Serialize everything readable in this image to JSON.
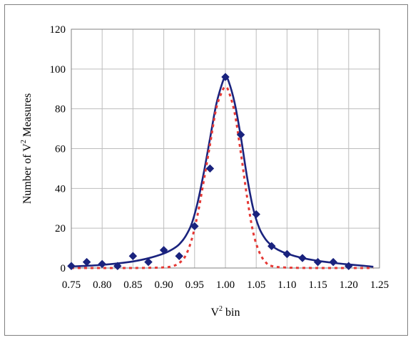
{
  "chart_data": {
    "type": "scatter",
    "title": "",
    "xlabel": "bin",
    "xlabel_prefix": "V",
    "xlabel_superscript": "2",
    "ylabel_prefix": "Number of V",
    "ylabel_superscript": "2",
    "ylabel_suffix": " Measures",
    "xlim": [
      0.75,
      1.25
    ],
    "ylim": [
      0,
      120
    ],
    "xticks": [
      "0.75",
      "0.80",
      "0.85",
      "0.90",
      "0.95",
      "1.00",
      "1.05",
      "1.10",
      "1.15",
      "1.20",
      "1.25"
    ],
    "yticks": [
      "0",
      "20",
      "40",
      "60",
      "80",
      "100",
      "120"
    ],
    "grid": true,
    "series": [
      {
        "kind": "markers",
        "marker": "diamond",
        "color": "#1a237e",
        "x": [
          0.75,
          0.775,
          0.8,
          0.825,
          0.85,
          0.875,
          0.9,
          0.925,
          0.95,
          0.975,
          1.0,
          1.025,
          1.05,
          1.075,
          1.1,
          1.125,
          1.15,
          1.175,
          1.2
        ],
        "y": [
          1,
          3,
          2,
          1,
          6,
          3,
          9,
          6,
          21,
          50,
          96,
          67,
          27,
          11,
          7,
          5,
          3,
          3,
          1
        ]
      },
      {
        "kind": "line",
        "style": "solid",
        "color": "#1a237e",
        "x": [
          0.75,
          0.775,
          0.8,
          0.825,
          0.85,
          0.875,
          0.9,
          0.915,
          0.925,
          0.935,
          0.945,
          0.955,
          0.965,
          0.975,
          0.985,
          0.995,
          1.0,
          1.005,
          1.015,
          1.025,
          1.035,
          1.045,
          1.055,
          1.065,
          1.075,
          1.085,
          1.1,
          1.125,
          1.15,
          1.175,
          1.2,
          1.225,
          1.24
        ],
        "y": [
          0.8,
          1.1,
          1.6,
          2.3,
          3.3,
          4.9,
          7.3,
          9.6,
          11.9,
          15.8,
          22,
          33,
          48,
          65,
          82,
          93,
          96,
          94,
          83,
          66,
          46,
          30,
          20,
          14.5,
          11.3,
          9.2,
          7.2,
          5,
          3.6,
          2.6,
          1.8,
          1.1,
          0.6
        ]
      },
      {
        "kind": "line",
        "style": "dashed",
        "color": "#e53935",
        "x": [
          0.75,
          0.8,
          0.85,
          0.9,
          0.915,
          0.925,
          0.935,
          0.945,
          0.955,
          0.965,
          0.975,
          0.985,
          0.995,
          1.0,
          1.005,
          1.015,
          1.025,
          1.035,
          1.045,
          1.055,
          1.065,
          1.075,
          1.1,
          1.15,
          1.2,
          1.24
        ],
        "y": [
          0,
          0,
          0,
          0.3,
          1,
          2.5,
          6,
          14,
          27,
          44,
          62,
          80,
          89,
          91,
          89,
          78,
          58,
          36,
          18,
          8,
          3,
          1,
          0.2,
          0,
          0,
          0
        ]
      }
    ]
  }
}
